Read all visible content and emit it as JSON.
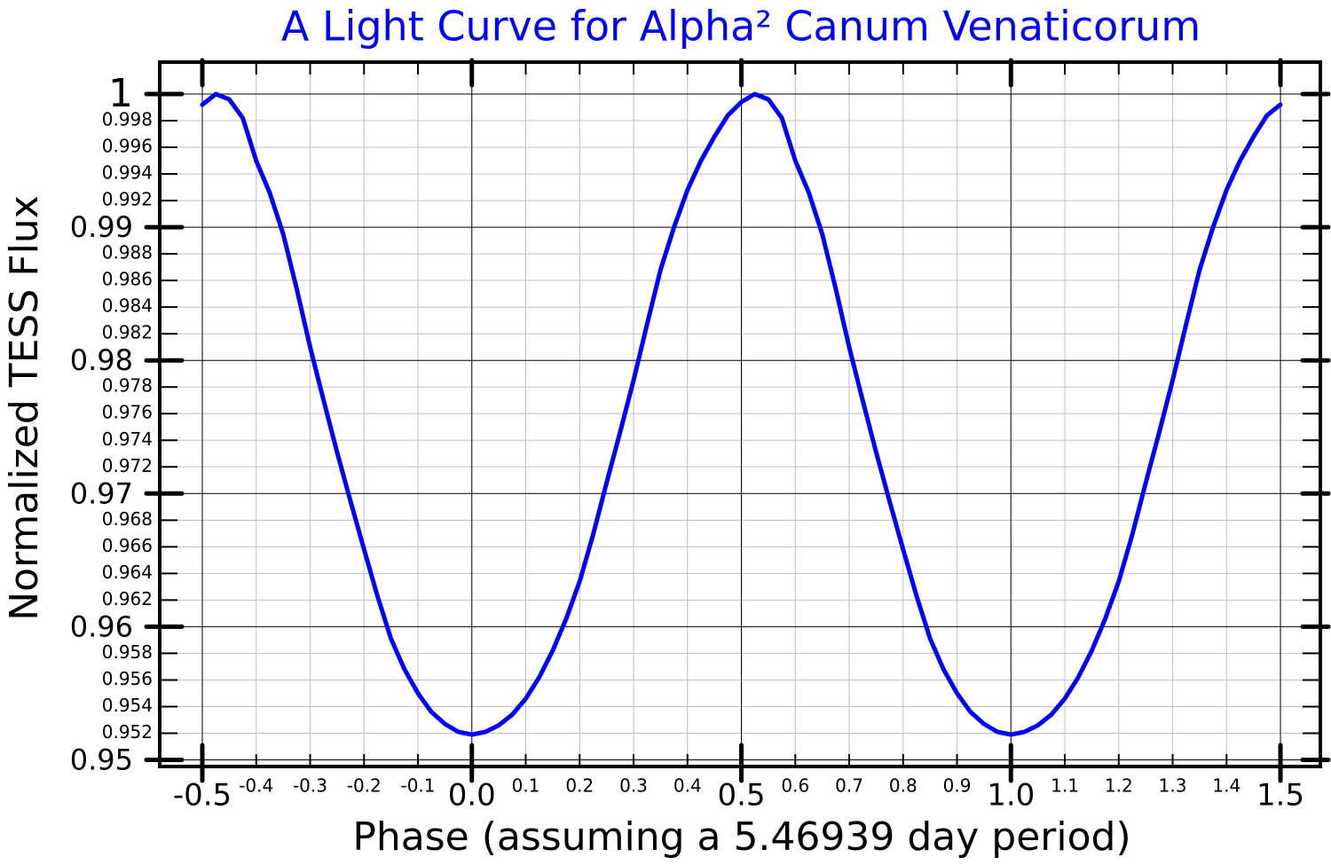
{
  "chart_data": {
    "type": "line",
    "title": "A Light Curve for Alpha² Canum Venaticorum",
    "x_label": "Phase (assuming a 5.46939 day period)",
    "y_label": "Normalized TESS Flux",
    "color": "#0000ff",
    "grid": true,
    "xlim": [
      -0.579,
      1.574
    ],
    "ylim": [
      0.9495,
      1.0024
    ],
    "xticks": [
      -0.5,
      {
        "value": 0,
        "label": "0.0"
      },
      0.5,
      {
        "value": 1,
        "label": "1.0"
      },
      1.5
    ],
    "xminorticks": [
      -0.4,
      -0.3,
      -0.2,
      -0.1,
      0.1,
      0.2,
      0.3,
      0.4,
      0.6,
      0.7,
      0.8,
      0.9,
      1.1,
      1.2,
      1.3,
      1.4
    ],
    "yticks": [
      0.95,
      0.96,
      0.97,
      0.98,
      0.99,
      1
    ],
    "yminorticks": [
      0.952,
      0.954,
      0.956,
      0.958,
      0.962,
      0.964,
      0.966,
      0.968,
      0.972,
      0.974,
      0.976,
      0.978,
      0.982,
      0.984,
      0.986,
      0.988,
      0.992,
      0.994,
      0.996,
      0.998
    ],
    "x": [
      -0.5,
      -0.475,
      -0.45,
      -0.425,
      -0.4,
      -0.375,
      -0.35,
      -0.325,
      -0.3,
      -0.275,
      -0.25,
      -0.225,
      -0.2,
      -0.175,
      -0.15,
      -0.125,
      -0.1,
      -0.075,
      -0.05,
      -0.025,
      0,
      0.025,
      0.05,
      0.075,
      0.1,
      0.125,
      0.15,
      0.175,
      0.2,
      0.225,
      0.25,
      0.275,
      0.3,
      0.325,
      0.35,
      0.375,
      0.4,
      0.425,
      0.45,
      0.475,
      0.5,
      0.525,
      0.55,
      0.575,
      0.6,
      0.625,
      0.65,
      0.675,
      0.7,
      0.725,
      0.75,
      0.775,
      0.8,
      0.825,
      0.85,
      0.875,
      0.9,
      0.925,
      0.95,
      0.975,
      1,
      1.025,
      1.05,
      1.075,
      1.1,
      1.125,
      1.15,
      1.175,
      1.2,
      1.225,
      1.25,
      1.275,
      1.3,
      1.325,
      1.35,
      1.375,
      1.4,
      1.425,
      1.45,
      1.475,
      1.5
    ],
    "values": [
      0.9992,
      1.0,
      0.9996,
      0.9982,
      0.995,
      0.9926,
      0.9895,
      0.9854,
      0.981,
      0.977,
      0.9731,
      0.9694,
      0.9658,
      0.9623,
      0.9591,
      0.9568,
      0.955,
      0.9536,
      0.9527,
      0.9521,
      0.9519,
      0.9521,
      0.9526,
      0.9534,
      0.9546,
      0.9562,
      0.9582,
      0.9606,
      0.9634,
      0.9669,
      0.9708,
      0.9746,
      0.9785,
      0.9827,
      0.9868,
      0.99,
      0.9928,
      0.995,
      0.9968,
      0.9984,
      0.9994,
      1.0,
      0.9996,
      0.9982,
      0.995,
      0.9926,
      0.9895,
      0.9854,
      0.981,
      0.977,
      0.9731,
      0.9694,
      0.9658,
      0.9623,
      0.9591,
      0.9568,
      0.955,
      0.9536,
      0.9527,
      0.9521,
      0.9519,
      0.9521,
      0.9526,
      0.9534,
      0.9546,
      0.9562,
      0.9582,
      0.9606,
      0.9634,
      0.9669,
      0.9708,
      0.9746,
      0.9785,
      0.9827,
      0.9868,
      0.99,
      0.9928,
      0.995,
      0.9968,
      0.9984,
      0.9992
    ]
  }
}
